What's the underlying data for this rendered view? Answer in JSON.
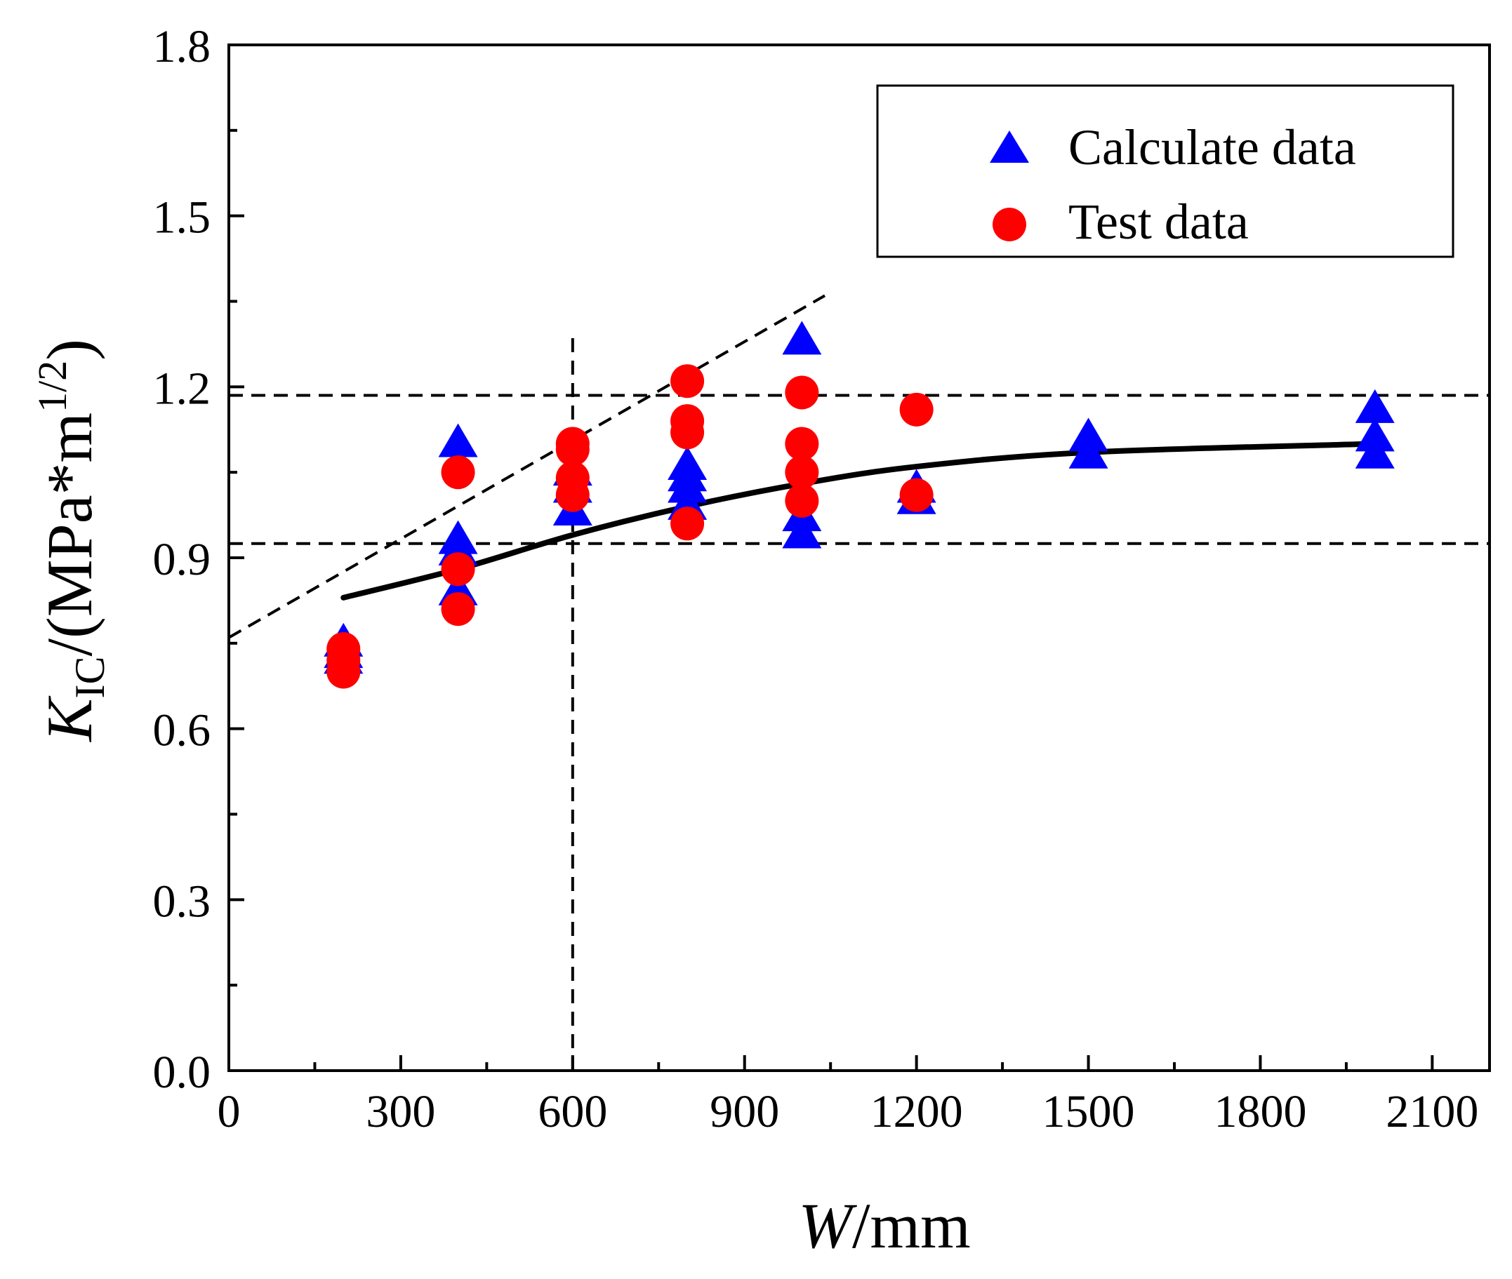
{
  "chart_data": {
    "type": "scatter",
    "xlabel": {
      "italic": "W",
      "rest": "/mm"
    },
    "ylabel": {
      "italic": "K",
      "sub": "IC",
      "rest": "/(MPa*m",
      "sup": "1/2",
      "close": ")"
    },
    "xlim": [
      0,
      2200
    ],
    "ylim": [
      0,
      1.8
    ],
    "xticks": [
      0,
      300,
      600,
      900,
      1200,
      1500,
      1800,
      2100
    ],
    "xtick_labels": [
      "0",
      "300",
      "600",
      "900",
      "1200",
      "1500",
      "1800",
      "2100"
    ],
    "yticks": [
      0.0,
      0.3,
      0.6,
      0.9,
      1.2,
      1.5,
      1.8
    ],
    "ytick_labels": [
      "0.0",
      "0.3",
      "0.6",
      "0.9",
      "1.2",
      "1.5",
      "1.8"
    ],
    "grid": false,
    "legend_position": "top-right",
    "series": [
      {
        "name": "Calculate data",
        "marker": "triangle",
        "color": "#0000ff",
        "points": [
          [
            200,
            0.75
          ],
          [
            200,
            0.73
          ],
          [
            200,
            0.72
          ],
          [
            400,
            1.1
          ],
          [
            400,
            0.93
          ],
          [
            400,
            0.91
          ],
          [
            400,
            0.84
          ],
          [
            600,
            1.05
          ],
          [
            600,
            1.02
          ],
          [
            600,
            0.98
          ],
          [
            800,
            1.06
          ],
          [
            800,
            1.04
          ],
          [
            800,
            1.02
          ],
          [
            800,
            0.99
          ],
          [
            1000,
            1.28
          ],
          [
            1000,
            0.97
          ],
          [
            1000,
            0.94
          ],
          [
            1200,
            1.02
          ],
          [
            1200,
            1.0
          ],
          [
            1500,
            1.11
          ],
          [
            1500,
            1.08
          ],
          [
            2000,
            1.16
          ],
          [
            2000,
            1.11
          ],
          [
            2000,
            1.08
          ]
        ]
      },
      {
        "name": "Test data",
        "marker": "circle",
        "color": "#ff0000",
        "points": [
          [
            200,
            0.74
          ],
          [
            200,
            0.72
          ],
          [
            200,
            0.7
          ],
          [
            400,
            1.05
          ],
          [
            400,
            0.88
          ],
          [
            400,
            0.81
          ],
          [
            600,
            1.1
          ],
          [
            600,
            1.09
          ],
          [
            600,
            1.04
          ],
          [
            600,
            1.01
          ],
          [
            800,
            1.21
          ],
          [
            800,
            1.14
          ],
          [
            800,
            1.12
          ],
          [
            800,
            0.96
          ],
          [
            1000,
            1.19
          ],
          [
            1000,
            1.1
          ],
          [
            1000,
            1.05
          ],
          [
            1000,
            1.0
          ],
          [
            1200,
            1.16
          ],
          [
            1200,
            1.01
          ]
        ]
      }
    ],
    "fit_curve": {
      "style": "solid",
      "color": "#000000",
      "points": [
        [
          200,
          0.83
        ],
        [
          400,
          0.88
        ],
        [
          600,
          0.94
        ],
        [
          800,
          0.99
        ],
        [
          1000,
          1.03
        ],
        [
          1200,
          1.06
        ],
        [
          1500,
          1.085
        ],
        [
          2000,
          1.1
        ]
      ]
    },
    "reference_lines": [
      {
        "kind": "horizontal",
        "y": 1.185
      },
      {
        "kind": "horizontal",
        "y": 0.925
      },
      {
        "kind": "vertical",
        "x": 600,
        "y_from": 0,
        "y_to": 1.29
      },
      {
        "kind": "segment",
        "from": [
          0,
          0.76
        ],
        "to": [
          1040,
          1.36
        ]
      }
    ]
  }
}
